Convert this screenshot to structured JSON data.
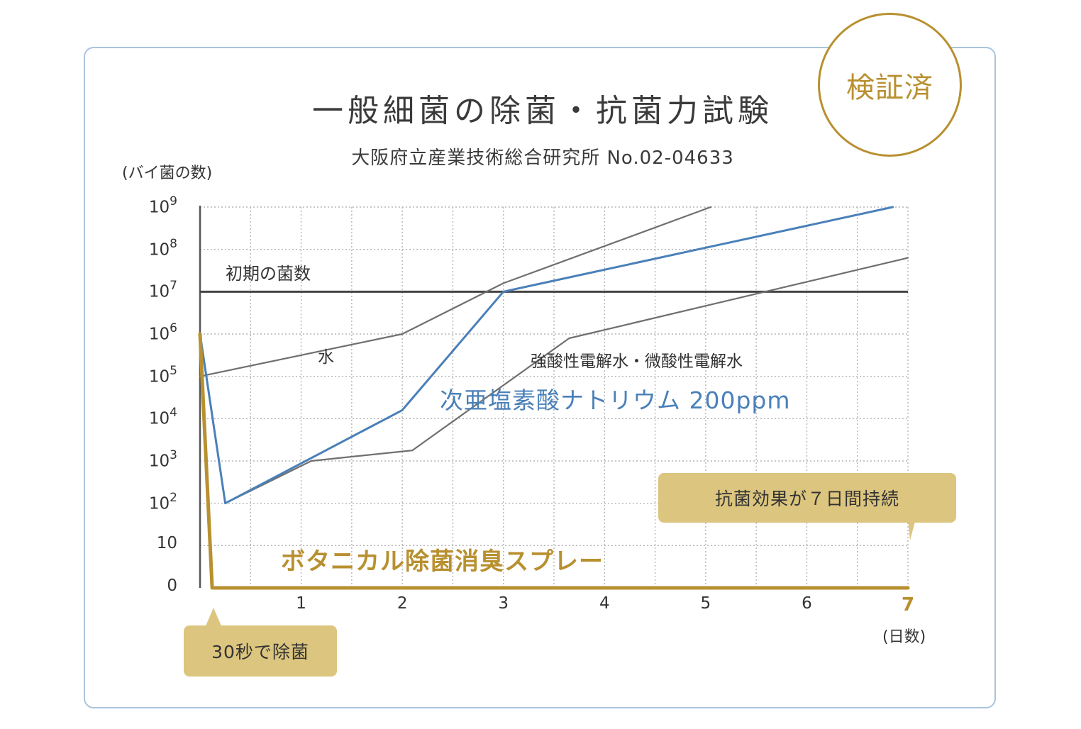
{
  "badge": "検証済",
  "chart_data": {
    "type": "line",
    "title": "一般細菌の除菌・抗菌力試験",
    "subtitle": "大阪府立産業技術総合研究所 No.02-04633",
    "ylabel": "(バイ菌の数)",
    "xlabel": "(日数)",
    "x_ticks": [
      "1",
      "2",
      "3",
      "4",
      "5",
      "6",
      "7"
    ],
    "y_ticks": [
      {
        "base": "0",
        "exp": ""
      },
      {
        "base": "10",
        "exp": ""
      },
      {
        "base": "10",
        "exp": "2"
      },
      {
        "base": "10",
        "exp": "3"
      },
      {
        "base": "10",
        "exp": "4"
      },
      {
        "base": "10",
        "exp": "5"
      },
      {
        "base": "10",
        "exp": "6"
      },
      {
        "base": "10",
        "exp": "7"
      },
      {
        "base": "10",
        "exp": "8"
      },
      {
        "base": "10",
        "exp": "9"
      }
    ],
    "xlim": [
      0,
      7
    ],
    "ylim_log_index": [
      0,
      9
    ],
    "grid": true,
    "reference_line": {
      "name": "初期の菌数",
      "y_log": 7
    },
    "series": [
      {
        "name": "水",
        "color": "#6f6f6f",
        "points": [
          [
            0,
            5
          ],
          [
            2,
            6
          ],
          [
            3,
            7.2
          ],
          [
            5.05,
            9
          ]
        ]
      },
      {
        "name": "強酸性電解水・微酸性電解水",
        "color": "#6f6f6f",
        "points": [
          [
            0,
            6
          ],
          [
            0.25,
            2
          ],
          [
            1.1,
            3
          ],
          [
            2.1,
            3.25
          ],
          [
            3.65,
            5.9
          ],
          [
            7,
            7.8
          ]
        ]
      },
      {
        "name": "次亜塩素酸ナトリウム 200ppm",
        "color": "#4a80b8",
        "points": [
          [
            0,
            6
          ],
          [
            0.25,
            2
          ],
          [
            2,
            4.2
          ],
          [
            3,
            7
          ],
          [
            6.85,
            9
          ]
        ]
      },
      {
        "name": "ボタニカル除菌消臭スプレー",
        "color": "#b89030",
        "points": [
          [
            0,
            6
          ],
          [
            0.12,
            0
          ],
          [
            7,
            0
          ]
        ]
      }
    ]
  },
  "callouts": {
    "seven_days": "抗菌効果が７日間持続",
    "thirty_sec": "30秒で除菌"
  }
}
